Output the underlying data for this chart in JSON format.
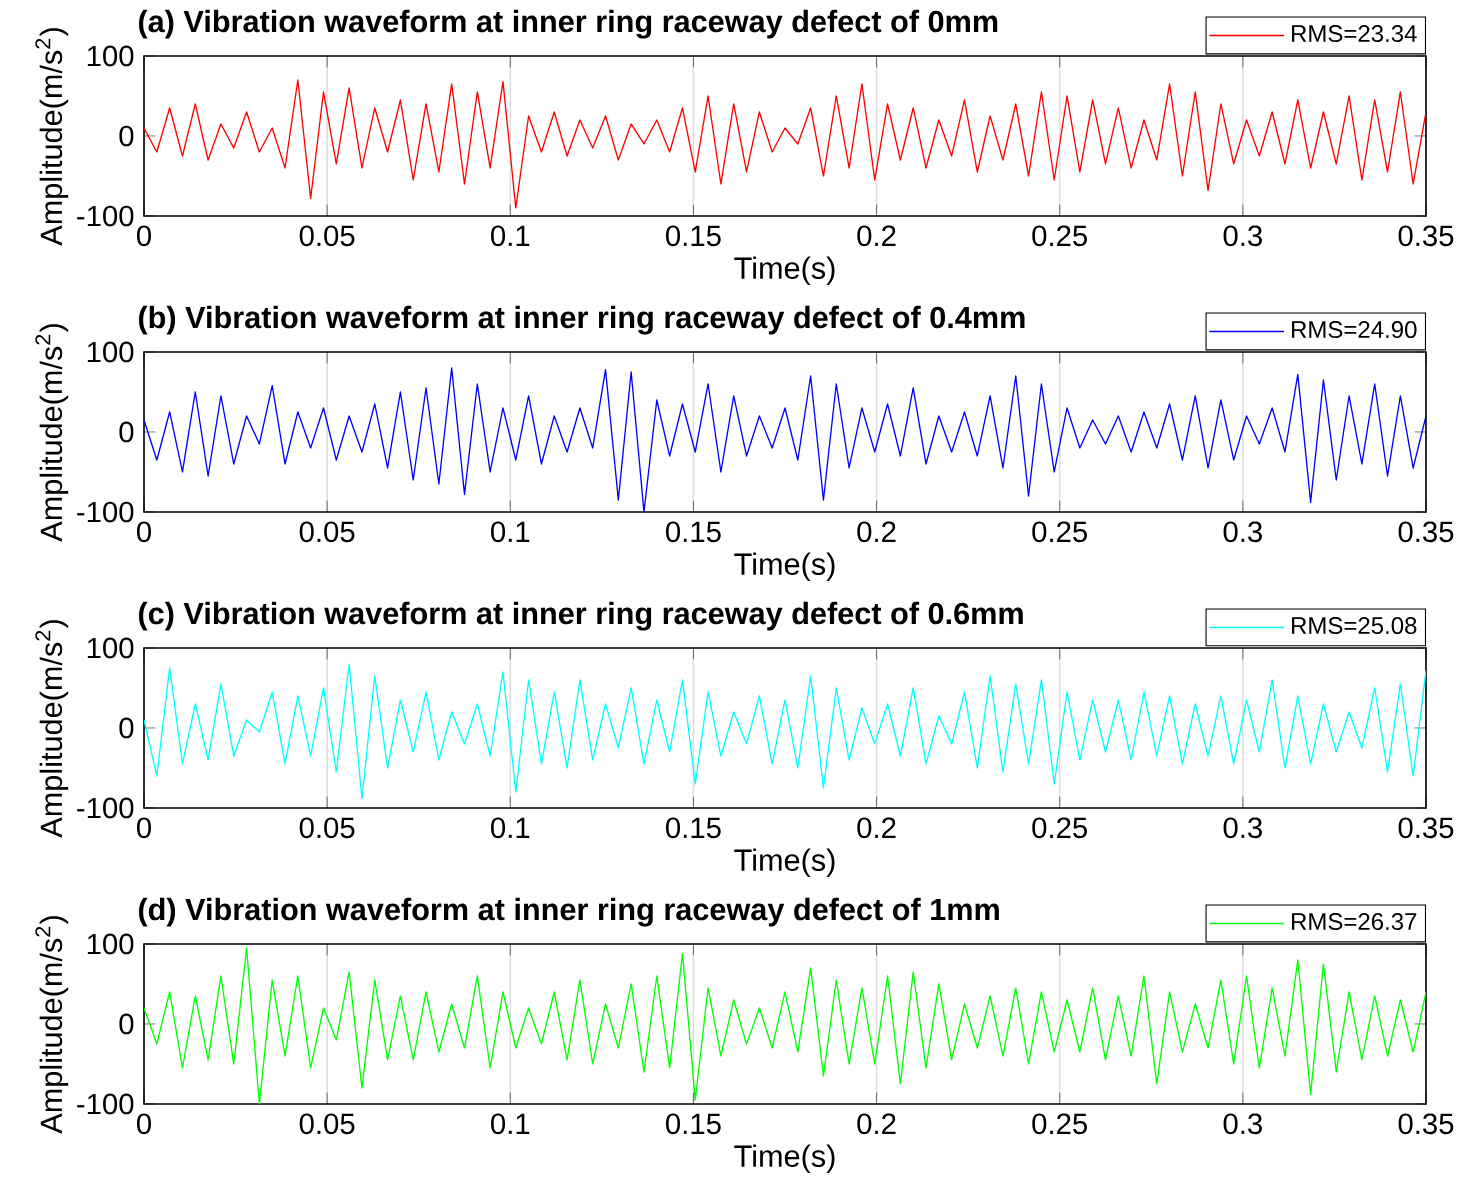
{
  "chart_data": [
    {
      "type": "line",
      "title": "(a) Vibration waveform at inner ring raceway defect of 0mm",
      "xlabel": "Time(s)",
      "ylabel": "Amplitude(m/s$^{2}$)",
      "xlim": [
        0,
        0.35
      ],
      "ylim": [
        -100,
        100
      ],
      "xticks": [
        0,
        0.05,
        0.1,
        0.15,
        0.2,
        0.25,
        0.3,
        0.35
      ],
      "yticks": [
        -100,
        0,
        100
      ],
      "grid": "x",
      "legend": "top right",
      "x": [
        0,
        0.0035,
        0.007,
        0.0105,
        0.014,
        0.0175,
        0.021,
        0.0245,
        0.028,
        0.0315,
        0.035,
        0.0385,
        0.042,
        0.0455,
        0.049,
        0.0525,
        0.056,
        0.0595,
        0.063,
        0.0665,
        0.07,
        0.0735,
        0.077,
        0.0805,
        0.084,
        0.0875,
        0.091,
        0.0945,
        0.098,
        0.1015,
        0.105,
        0.1085,
        0.112,
        0.1155,
        0.119,
        0.1225,
        0.126,
        0.1295,
        0.133,
        0.1365,
        0.14,
        0.1435,
        0.147,
        0.1505,
        0.154,
        0.1575,
        0.161,
        0.1645,
        0.168,
        0.1715,
        0.175,
        0.1785,
        0.182,
        0.1855,
        0.189,
        0.1925,
        0.196,
        0.1995,
        0.203,
        0.2065,
        0.21,
        0.2135,
        0.217,
        0.2205,
        0.224,
        0.2275,
        0.231,
        0.2345,
        0.238,
        0.2415,
        0.245,
        0.2485,
        0.252,
        0.2555,
        0.259,
        0.2625,
        0.266,
        0.2695,
        0.273,
        0.2765,
        0.28,
        0.2835,
        0.287,
        0.2905,
        0.294,
        0.2975,
        0.301,
        0.3045,
        0.308,
        0.3115,
        0.315,
        0.3185,
        0.322,
        0.3255,
        0.329,
        0.3325,
        0.336,
        0.3395,
        0.343,
        0.3465,
        0.35
      ],
      "series": [
        {
          "name": "RMS=23.34",
          "color": "#ff0000",
          "values": [
            10,
            -20,
            35,
            -25,
            40,
            -30,
            15,
            -15,
            30,
            -20,
            10,
            -40,
            70,
            -78,
            55,
            -35,
            60,
            -40,
            35,
            -20,
            45,
            -55,
            40,
            -45,
            65,
            -60,
            55,
            -40,
            68,
            -90,
            25,
            -20,
            30,
            -25,
            20,
            -15,
            25,
            -30,
            15,
            -10,
            20,
            -20,
            35,
            -45,
            50,
            -60,
            40,
            -45,
            30,
            -20,
            10,
            -10,
            35,
            -50,
            50,
            -40,
            65,
            -55,
            40,
            -30,
            35,
            -40,
            20,
            -25,
            45,
            -45,
            25,
            -30,
            40,
            -50,
            55,
            -55,
            50,
            -45,
            45,
            -35,
            35,
            -40,
            20,
            -30,
            65,
            -50,
            55,
            -68,
            40,
            -35,
            20,
            -25,
            30,
            -35,
            45,
            -40,
            30,
            -35,
            50,
            -55,
            45,
            -45,
            55,
            -60,
            30
          ]
        }
      ]
    },
    {
      "type": "line",
      "title": "(b) Vibration waveform at inner ring raceway defect of 0.4mm",
      "xlabel": "Time(s)",
      "ylabel": "Amplitude(m/s$^{2}$)",
      "xlim": [
        0,
        0.35
      ],
      "ylim": [
        -100,
        100
      ],
      "xticks": [
        0,
        0.05,
        0.1,
        0.15,
        0.2,
        0.25,
        0.3,
        0.35
      ],
      "yticks": [
        -100,
        0,
        100
      ],
      "grid": "x",
      "legend": "top right",
      "x": [
        0,
        0.0035,
        0.007,
        0.0105,
        0.014,
        0.0175,
        0.021,
        0.0245,
        0.028,
        0.0315,
        0.035,
        0.0385,
        0.042,
        0.0455,
        0.049,
        0.0525,
        0.056,
        0.0595,
        0.063,
        0.0665,
        0.07,
        0.0735,
        0.077,
        0.0805,
        0.084,
        0.0875,
        0.091,
        0.0945,
        0.098,
        0.1015,
        0.105,
        0.1085,
        0.112,
        0.1155,
        0.119,
        0.1225,
        0.126,
        0.1295,
        0.133,
        0.1365,
        0.14,
        0.1435,
        0.147,
        0.1505,
        0.154,
        0.1575,
        0.161,
        0.1645,
        0.168,
        0.1715,
        0.175,
        0.1785,
        0.182,
        0.1855,
        0.189,
        0.1925,
        0.196,
        0.1995,
        0.203,
        0.2065,
        0.21,
        0.2135,
        0.217,
        0.2205,
        0.224,
        0.2275,
        0.231,
        0.2345,
        0.238,
        0.2415,
        0.245,
        0.2485,
        0.252,
        0.2555,
        0.259,
        0.2625,
        0.266,
        0.2695,
        0.273,
        0.2765,
        0.28,
        0.2835,
        0.287,
        0.2905,
        0.294,
        0.2975,
        0.301,
        0.3045,
        0.308,
        0.3115,
        0.315,
        0.3185,
        0.322,
        0.3255,
        0.329,
        0.3325,
        0.336,
        0.3395,
        0.343,
        0.3465,
        0.35
      ],
      "series": [
        {
          "name": "RMS=24.90",
          "color": "#0000ff",
          "values": [
            15,
            -35,
            25,
            -50,
            50,
            -55,
            45,
            -40,
            20,
            -15,
            58,
            -40,
            25,
            -20,
            30,
            -35,
            20,
            -25,
            35,
            -45,
            50,
            -60,
            55,
            -65,
            80,
            -78,
            60,
            -50,
            30,
            -35,
            45,
            -40,
            20,
            -25,
            30,
            -20,
            78,
            -85,
            75,
            -100,
            40,
            -30,
            35,
            -25,
            60,
            -50,
            45,
            -30,
            20,
            -20,
            30,
            -35,
            70,
            -85,
            60,
            -45,
            30,
            -25,
            35,
            -30,
            55,
            -40,
            20,
            -25,
            25,
            -30,
            45,
            -45,
            70,
            -80,
            60,
            -50,
            30,
            -20,
            15,
            -15,
            20,
            -25,
            25,
            -20,
            35,
            -35,
            45,
            -45,
            40,
            -35,
            20,
            -15,
            30,
            -25,
            72,
            -88,
            65,
            -60,
            45,
            -40,
            60,
            -55,
            45,
            -45,
            20
          ]
        }
      ]
    },
    {
      "type": "line",
      "title": "(c) Vibration waveform at inner ring raceway defect of 0.6mm",
      "xlabel": "Time(s)",
      "ylabel": "Amplitude(m/s$^{2}$)",
      "xlim": [
        0,
        0.35
      ],
      "ylim": [
        -100,
        100
      ],
      "xticks": [
        0,
        0.05,
        0.1,
        0.15,
        0.2,
        0.25,
        0.3,
        0.35
      ],
      "yticks": [
        -100,
        0,
        100
      ],
      "grid": "x",
      "legend": "top right",
      "x": [
        0,
        0.0035,
        0.007,
        0.0105,
        0.014,
        0.0175,
        0.021,
        0.0245,
        0.028,
        0.0315,
        0.035,
        0.0385,
        0.042,
        0.0455,
        0.049,
        0.0525,
        0.056,
        0.0595,
        0.063,
        0.0665,
        0.07,
        0.0735,
        0.077,
        0.0805,
        0.084,
        0.0875,
        0.091,
        0.0945,
        0.098,
        0.1015,
        0.105,
        0.1085,
        0.112,
        0.1155,
        0.119,
        0.1225,
        0.126,
        0.1295,
        0.133,
        0.1365,
        0.14,
        0.1435,
        0.147,
        0.1505,
        0.154,
        0.1575,
        0.161,
        0.1645,
        0.168,
        0.1715,
        0.175,
        0.1785,
        0.182,
        0.1855,
        0.189,
        0.1925,
        0.196,
        0.1995,
        0.203,
        0.2065,
        0.21,
        0.2135,
        0.217,
        0.2205,
        0.224,
        0.2275,
        0.231,
        0.2345,
        0.238,
        0.2415,
        0.245,
        0.2485,
        0.252,
        0.2555,
        0.259,
        0.2625,
        0.266,
        0.2695,
        0.273,
        0.2765,
        0.28,
        0.2835,
        0.287,
        0.2905,
        0.294,
        0.2975,
        0.301,
        0.3045,
        0.308,
        0.3115,
        0.315,
        0.3185,
        0.322,
        0.3255,
        0.329,
        0.3325,
        0.336,
        0.3395,
        0.343,
        0.3465,
        0.35
      ],
      "series": [
        {
          "name": "RMS=25.08",
          "color": "#00ffff",
          "values": [
            10,
            -60,
            75,
            -45,
            30,
            -40,
            55,
            -35,
            10,
            -5,
            45,
            -45,
            40,
            -35,
            50,
            -55,
            80,
            -88,
            65,
            -50,
            35,
            -30,
            45,
            -40,
            20,
            -20,
            30,
            -35,
            70,
            -80,
            60,
            -45,
            45,
            -50,
            60,
            -40,
            30,
            -25,
            50,
            -45,
            35,
            -30,
            60,
            -70,
            45,
            -35,
            20,
            -20,
            40,
            -45,
            35,
            -50,
            65,
            -75,
            50,
            -40,
            25,
            -20,
            30,
            -35,
            50,
            -45,
            15,
            -20,
            45,
            -50,
            65,
            -55,
            55,
            -45,
            60,
            -70,
            45,
            -40,
            35,
            -30,
            35,
            -40,
            45,
            -35,
            40,
            -45,
            30,
            -35,
            40,
            -45,
            35,
            -30,
            60,
            -50,
            40,
            -45,
            30,
            -30,
            20,
            -25,
            50,
            -55,
            55,
            -60,
            72
          ]
        }
      ]
    },
    {
      "type": "line",
      "title": "(d) Vibration waveform at inner ring raceway defect of 1mm",
      "xlabel": "Time(s)",
      "ylabel": "Amplitude(m/s$^{2}$)",
      "xlim": [
        0,
        0.35
      ],
      "ylim": [
        -100,
        100
      ],
      "xticks": [
        0,
        0.05,
        0.1,
        0.15,
        0.2,
        0.25,
        0.3,
        0.35
      ],
      "yticks": [
        -100,
        0,
        100
      ],
      "grid": "x",
      "legend": "top right",
      "x": [
        0,
        0.0035,
        0.007,
        0.0105,
        0.014,
        0.0175,
        0.021,
        0.0245,
        0.028,
        0.0315,
        0.035,
        0.0385,
        0.042,
        0.0455,
        0.049,
        0.0525,
        0.056,
        0.0595,
        0.063,
        0.0665,
        0.07,
        0.0735,
        0.077,
        0.0805,
        0.084,
        0.0875,
        0.091,
        0.0945,
        0.098,
        0.1015,
        0.105,
        0.1085,
        0.112,
        0.1155,
        0.119,
        0.1225,
        0.126,
        0.1295,
        0.133,
        0.1365,
        0.14,
        0.1435,
        0.147,
        0.1505,
        0.154,
        0.1575,
        0.161,
        0.1645,
        0.168,
        0.1715,
        0.175,
        0.1785,
        0.182,
        0.1855,
        0.189,
        0.1925,
        0.196,
        0.1995,
        0.203,
        0.2065,
        0.21,
        0.2135,
        0.217,
        0.2205,
        0.224,
        0.2275,
        0.231,
        0.2345,
        0.238,
        0.2415,
        0.245,
        0.2485,
        0.252,
        0.2555,
        0.259,
        0.2625,
        0.266,
        0.2695,
        0.273,
        0.2765,
        0.28,
        0.2835,
        0.287,
        0.2905,
        0.294,
        0.2975,
        0.301,
        0.3045,
        0.308,
        0.3115,
        0.315,
        0.3185,
        0.322,
        0.3255,
        0.329,
        0.3325,
        0.336,
        0.3395,
        0.343,
        0.3465,
        0.35
      ],
      "series": [
        {
          "name": "RMS=26.37",
          "color": "#00ff00",
          "values": [
            20,
            -25,
            40,
            -55,
            35,
            -45,
            60,
            -50,
            95,
            -100,
            55,
            -40,
            60,
            -55,
            20,
            -20,
            65,
            -80,
            55,
            -45,
            35,
            -45,
            40,
            -35,
            25,
            -30,
            60,
            -55,
            40,
            -30,
            20,
            -25,
            40,
            -45,
            55,
            -50,
            25,
            -30,
            50,
            -60,
            60,
            -55,
            88,
            -95,
            45,
            -40,
            30,
            -25,
            20,
            -30,
            40,
            -35,
            70,
            -65,
            55,
            -50,
            45,
            -50,
            60,
            -75,
            65,
            -55,
            50,
            -45,
            25,
            -30,
            35,
            -40,
            45,
            -50,
            40,
            -35,
            30,
            -35,
            45,
            -45,
            35,
            -40,
            60,
            -75,
            40,
            -35,
            25,
            -30,
            55,
            -50,
            60,
            -55,
            45,
            -40,
            80,
            -88,
            75,
            -60,
            40,
            -45,
            35,
            -40,
            30,
            -35,
            40
          ]
        }
      ]
    }
  ]
}
